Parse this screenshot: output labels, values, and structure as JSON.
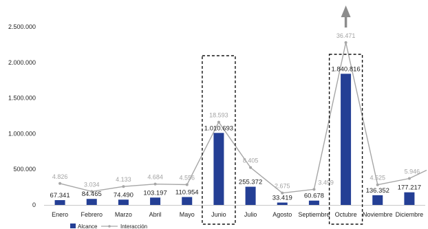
{
  "chart_data": {
    "type": "bar",
    "title": "",
    "xlabel": "",
    "ylabel": "",
    "ylim": [
      0,
      2500000
    ],
    "yticks": [
      0,
      500000,
      1000000,
      1500000,
      2000000,
      2500000
    ],
    "ytick_labels": [
      "0",
      "500.000",
      "1.000.000",
      "1.500.000",
      "2.000.000",
      "2.500.000"
    ],
    "grid": false,
    "legend_position": "bottom-left",
    "categories": [
      "Enero",
      "Febrero",
      "Marzo",
      "Abril",
      "Mayo",
      "Junio",
      "Julio",
      "Agosto",
      "Septiembre",
      "Octubre",
      "Noviembre",
      "Diciembre"
    ],
    "series": [
      {
        "name": "Alcance",
        "kind": "bar",
        "color": "#243f95",
        "values": [
          67341,
          84465,
          74490,
          103197,
          110954,
          1010693,
          255372,
          33419,
          60678,
          1840816,
          136352,
          177217
        ],
        "labels": [
          "67.341",
          "84.465",
          "74.490",
          "103.197",
          "110.954",
          "1.010.693",
          "255.372",
          "33.419",
          "60.678",
          "1.840.816",
          "136.352",
          "177.217"
        ]
      },
      {
        "name": "Interacción",
        "kind": "line",
        "color": "#a6a6a6",
        "axis": "secondary",
        "secondary_ylim": [
          0,
          40000
        ],
        "values": [
          4826,
          3034,
          4133,
          4684,
          4556,
          18593,
          8405,
          2675,
          3499,
          36471,
          4525,
          5946
        ],
        "labels": [
          "4.826",
          "3.034",
          "4.133",
          "4.684",
          "4.556",
          "18.593",
          "8.405",
          "2.675",
          "3.499",
          "36.471",
          "4.525",
          "5.946"
        ]
      }
    ],
    "highlights": [
      "Junio",
      "Octubre"
    ],
    "arrow_on": "Octubre"
  }
}
